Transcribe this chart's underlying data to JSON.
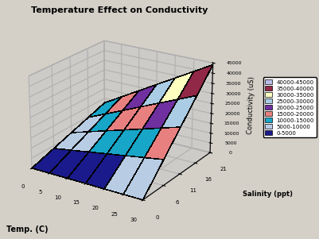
{
  "title": "Temperature Effect on Conductivity",
  "xlabel_bottom": "Temp. (C)",
  "ylabel_legend": "Salinity (ppt)",
  "zlabel": "Conductivity (uS)",
  "salinity_values": [
    0,
    6,
    11,
    16,
    21
  ],
  "temp_values": [
    0,
    5,
    10,
    15,
    20,
    25,
    30
  ],
  "legend_labels": [
    "40000-45000",
    "35000-40000",
    "30000-35000",
    "25000-30000",
    "20000-25000",
    "15000-20000",
    "10000-15000",
    "5000-10000",
    "0-5000"
  ],
  "band_colors": [
    "#1a1a8c",
    "#b8cce4",
    "#17a5c8",
    "#e88080",
    "#7030a0",
    "#aacce4",
    "#ffffc0",
    "#922848",
    "#bbbce8"
  ],
  "pane_color": "#c8c8c8",
  "bg_color": "#d4d0c8",
  "elev": 22,
  "azim": -57,
  "zlim": [
    0,
    45000
  ],
  "zticks": [
    0,
    5000,
    10000,
    15000,
    20000,
    25000,
    30000,
    35000,
    40000,
    45000
  ],
  "conductivity_scale": 2100
}
